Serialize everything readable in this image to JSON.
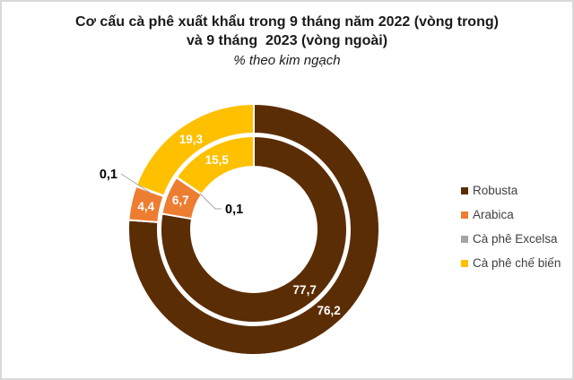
{
  "panel": {
    "background": "#FFFFFF",
    "border_color": "#D9D9D9"
  },
  "title": {
    "line1": "Cơ cấu cà phê xuất khẩu trong 9 tháng năm 2022 (vòng trong)",
    "line2": "và 9 tháng  2023 (vòng ngoài)",
    "subtitle": "% theo kim ngạch"
  },
  "legend": {
    "position": "right",
    "text_color": "#404040",
    "items": [
      {
        "label": "Robusta",
        "color": "#5B2D05"
      },
      {
        "label": "Arabica",
        "color": "#ED7D31"
      },
      {
        "label": "Cà phê Excelsa",
        "color": "#A5A5A5"
      },
      {
        "label": "Cà phê chế biến",
        "color": "#FFC000"
      }
    ]
  },
  "chart_data": {
    "type": "pie",
    "subtype": "double-donut",
    "title": "Cơ cấu cà phê xuất khẩu trong 9 tháng năm 2022 (vòng trong) và 9 tháng 2023 (vòng ngoài)",
    "subtitle": "% theo kim ngạch",
    "unit": "%",
    "direction": "clockwise",
    "start_angle_deg": 0,
    "legend_position": "right",
    "categories": [
      "Robusta",
      "Arabica",
      "Cà phê Excelsa",
      "Cà phê chế biến"
    ],
    "colors": [
      "#5B2D05",
      "#ED7D31",
      "#A5A5A5",
      "#FFC000"
    ],
    "series": [
      {
        "name": "9 tháng năm 2022",
        "ring": "inner",
        "values": [
          77.7,
          6.7,
          0.1,
          15.5
        ],
        "labels": [
          "77,7",
          "6,7",
          "0,1",
          "15,5"
        ]
      },
      {
        "name": "9 tháng 2023",
        "ring": "outer",
        "values": [
          76.2,
          4.4,
          0.1,
          19.3
        ],
        "labels": [
          "76,2",
          "4,4",
          "0,1",
          "19,3"
        ]
      }
    ],
    "slice_label_color": "#FFFFFF",
    "callout_label_color": "#000000",
    "leader_line_color": "#A6A6A6",
    "slice_border_color": "#FFFFFF"
  }
}
